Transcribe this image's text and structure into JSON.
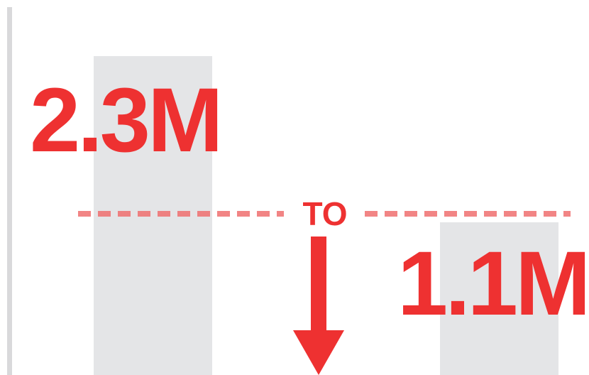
{
  "chart_data": {
    "type": "bar",
    "categories": [
      "",
      ""
    ],
    "values": [
      2.3,
      1.1
    ],
    "value_labels": [
      "2.3M",
      "1.1M"
    ],
    "connector_label": "TO",
    "title": "",
    "xlabel": "",
    "ylabel": "",
    "grid": false,
    "legend": "none"
  },
  "colors": {
    "accent": "#ee3131",
    "bar": "#e4e5e7",
    "axis": "#d9d9db",
    "dashed_line": "#ef6f6f"
  },
  "icons": {
    "arrow": "arrow-down-icon"
  }
}
